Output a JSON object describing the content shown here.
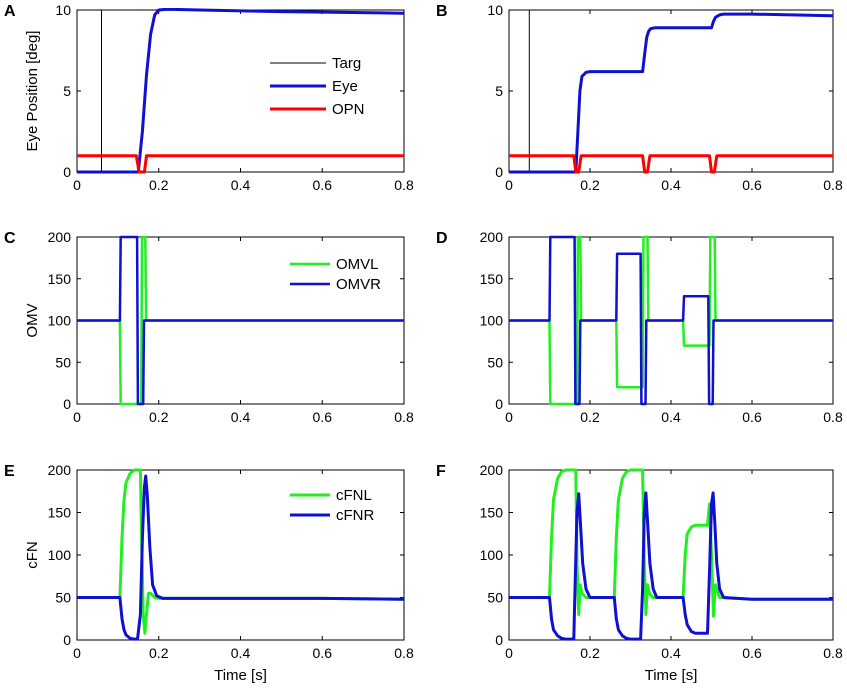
{
  "figure": {
    "title": "Saccade model simulation panels"
  },
  "chart_data": [
    {
      "id": "A",
      "type": "line",
      "panel_label": "A",
      "title": "",
      "xlabel": "",
      "ylabel": "Eye Position [deg]",
      "xlim": [
        0,
        0.8
      ],
      "ylim": [
        0,
        10
      ],
      "xticks": [
        0,
        0.2,
        0.4,
        0.6,
        0.8
      ],
      "xtick_labels": [
        "0",
        "0.2",
        "0.4",
        "0.6",
        "0.8"
      ],
      "yticks": [
        0,
        5,
        10
      ],
      "ytick_labels": [
        "0",
        "5",
        "10"
      ],
      "legend": {
        "position": "center",
        "entries": [
          "Targ",
          "Eye",
          "OPN"
        ]
      },
      "series": [
        {
          "name": "Targ",
          "color": "#000000",
          "width": 1,
          "x": [
            0,
            0.06,
            0.06,
            0.8
          ],
          "y": [
            0,
            0,
            10,
            10
          ]
        },
        {
          "name": "Eye",
          "color": "#1010d0",
          "width": 3,
          "x": [
            0,
            0.15,
            0.16,
            0.17,
            0.18,
            0.19,
            0.2,
            0.22,
            0.3,
            0.5,
            0.8
          ],
          "y": [
            0,
            0,
            2.5,
            6.0,
            8.5,
            9.7,
            10.0,
            10.05,
            10.0,
            9.9,
            9.8
          ]
        },
        {
          "name": "OPN",
          "color": "#ff0000",
          "width": 3,
          "x": [
            0,
            0.145,
            0.152,
            0.165,
            0.17,
            0.8
          ],
          "y": [
            1,
            1,
            0,
            0,
            1,
            1
          ]
        }
      ]
    },
    {
      "id": "B",
      "type": "line",
      "panel_label": "B",
      "title": "",
      "xlabel": "",
      "ylabel": "",
      "xlim": [
        0,
        0.8
      ],
      "ylim": [
        0,
        10
      ],
      "xticks": [
        0,
        0.2,
        0.4,
        0.6,
        0.8
      ],
      "xtick_labels": [
        "0",
        "0.2",
        "0.4",
        "0.6",
        "0.8"
      ],
      "yticks": [
        0,
        5,
        10
      ],
      "ytick_labels": [
        "0",
        "5",
        "10"
      ],
      "series": [
        {
          "name": "Targ",
          "color": "#000000",
          "width": 1,
          "x": [
            0,
            0.05,
            0.05,
            0.8
          ],
          "y": [
            0,
            0,
            10,
            10
          ]
        },
        {
          "name": "Eye",
          "color": "#1010d0",
          "width": 3,
          "x": [
            0,
            0.165,
            0.17,
            0.175,
            0.18,
            0.19,
            0.2,
            0.25,
            0.33,
            0.335,
            0.34,
            0.345,
            0.35,
            0.36,
            0.4,
            0.5,
            0.505,
            0.51,
            0.52,
            0.53,
            0.6,
            0.8
          ],
          "y": [
            0,
            0,
            2.5,
            5.0,
            5.9,
            6.15,
            6.2,
            6.2,
            6.2,
            7.3,
            8.3,
            8.7,
            8.85,
            8.9,
            8.9,
            8.9,
            9.3,
            9.55,
            9.7,
            9.75,
            9.75,
            9.65
          ]
        },
        {
          "name": "OPN",
          "color": "#ff0000",
          "width": 3,
          "x": [
            0,
            0.16,
            0.165,
            0.172,
            0.178,
            0.33,
            0.335,
            0.342,
            0.348,
            0.495,
            0.5,
            0.507,
            0.513,
            0.8
          ],
          "y": [
            1,
            1,
            0,
            0,
            1,
            1,
            0,
            0,
            1,
            1,
            0,
            0,
            1,
            1
          ]
        }
      ]
    },
    {
      "id": "C",
      "type": "line",
      "panel_label": "C",
      "title": "",
      "xlabel": "",
      "ylabel": "OMV",
      "xlim": [
        0,
        0.8
      ],
      "ylim": [
        0,
        200
      ],
      "xticks": [
        0,
        0.2,
        0.4,
        0.6,
        0.8
      ],
      "xtick_labels": [
        "0",
        "0.2",
        "0.4",
        "0.6",
        "0.8"
      ],
      "yticks": [
        0,
        50,
        100,
        150,
        200
      ],
      "ytick_labels": [
        "0",
        "50",
        "100",
        "150",
        "200"
      ],
      "legend": {
        "position": "center-right",
        "entries": [
          "OMVL",
          "OMVR"
        ]
      },
      "series": [
        {
          "name": "OMVL",
          "color": "#22ee22",
          "width": 2.5,
          "x": [
            0,
            0.105,
            0.107,
            0.157,
            0.159,
            0.167,
            0.169,
            0.8
          ],
          "y": [
            100,
            100,
            0,
            0,
            200,
            200,
            100,
            100
          ]
        },
        {
          "name": "OMVR",
          "color": "#1010d0",
          "width": 2.5,
          "x": [
            0,
            0.105,
            0.107,
            0.147,
            0.149,
            0.162,
            0.164,
            0.8
          ],
          "y": [
            100,
            100,
            200,
            200,
            0,
            0,
            100,
            100
          ]
        }
      ]
    },
    {
      "id": "D",
      "type": "line",
      "panel_label": "D",
      "title": "",
      "xlabel": "",
      "ylabel": "",
      "xlim": [
        0,
        0.8
      ],
      "ylim": [
        0,
        200
      ],
      "xticks": [
        0,
        0.2,
        0.4,
        0.6,
        0.8
      ],
      "xtick_labels": [
        "0",
        "0.2",
        "0.4",
        "0.6",
        "0.8"
      ],
      "yticks": [
        0,
        50,
        100,
        150,
        200
      ],
      "ytick_labels": [
        "0",
        "50",
        "100",
        "150",
        "200"
      ],
      "series": [
        {
          "name": "OMVL",
          "color": "#22ee22",
          "width": 2.5,
          "x": [
            0,
            0.1,
            0.102,
            0.168,
            0.17,
            0.176,
            0.178,
            0.265,
            0.267,
            0.33,
            0.332,
            0.342,
            0.344,
            0.43,
            0.432,
            0.495,
            0.497,
            0.508,
            0.51,
            0.8
          ],
          "y": [
            100,
            100,
            0,
            0,
            200,
            200,
            100,
            100,
            20,
            20,
            200,
            200,
            100,
            100,
            70,
            70,
            200,
            200,
            100,
            100
          ]
        },
        {
          "name": "OMVR",
          "color": "#1010d0",
          "width": 2.5,
          "x": [
            0,
            0.1,
            0.102,
            0.162,
            0.164,
            0.174,
            0.176,
            0.265,
            0.267,
            0.325,
            0.327,
            0.337,
            0.339,
            0.43,
            0.432,
            0.492,
            0.494,
            0.503,
            0.505,
            0.8
          ],
          "y": [
            100,
            100,
            200,
            200,
            0,
            0,
            100,
            100,
            180,
            180,
            0,
            0,
            100,
            100,
            129,
            129,
            0,
            0,
            100,
            100
          ]
        }
      ]
    },
    {
      "id": "E",
      "type": "line",
      "panel_label": "E",
      "title": "",
      "xlabel": "Time [s]",
      "ylabel": "cFN",
      "xlim": [
        0,
        0.8
      ],
      "ylim": [
        0,
        200
      ],
      "xticks": [
        0,
        0.2,
        0.4,
        0.6,
        0.8
      ],
      "xtick_labels": [
        "0",
        "0.2",
        "0.4",
        "0.6",
        "0.8"
      ],
      "yticks": [
        0,
        50,
        100,
        150,
        200
      ],
      "ytick_labels": [
        "0",
        "50",
        "100",
        "150",
        "200"
      ],
      "legend": {
        "position": "center-right",
        "entries": [
          "cFNL",
          "cFNR"
        ]
      },
      "series": [
        {
          "name": "cFNL",
          "color": "#22ee22",
          "width": 3,
          "x": [
            0,
            0.105,
            0.11,
            0.115,
            0.12,
            0.13,
            0.14,
            0.155,
            0.158,
            0.162,
            0.166,
            0.17,
            0.175,
            0.18,
            0.19,
            0.2,
            0.4,
            0.6,
            0.8
          ],
          "y": [
            50,
            50,
            120,
            165,
            185,
            196,
            200,
            200,
            120,
            30,
            8,
            30,
            55,
            55,
            50,
            49,
            49,
            49,
            48
          ]
        },
        {
          "name": "cFNR",
          "color": "#1010d0",
          "width": 3,
          "x": [
            0,
            0.105,
            0.11,
            0.115,
            0.12,
            0.13,
            0.14,
            0.148,
            0.155,
            0.16,
            0.165,
            0.168,
            0.172,
            0.178,
            0.185,
            0.195,
            0.21,
            0.4,
            0.6,
            0.8
          ],
          "y": [
            50,
            50,
            25,
            12,
            6,
            2,
            1,
            1,
            30,
            120,
            180,
            193,
            170,
            110,
            65,
            52,
            49,
            49,
            49,
            48
          ]
        }
      ]
    },
    {
      "id": "F",
      "type": "line",
      "panel_label": "F",
      "title": "",
      "xlabel": "Time [s]",
      "ylabel": "",
      "xlim": [
        0,
        0.8
      ],
      "ylim": [
        0,
        200
      ],
      "xticks": [
        0,
        0.2,
        0.4,
        0.6,
        0.8
      ],
      "xtick_labels": [
        "0",
        "0.2",
        "0.4",
        "0.6",
        "0.8"
      ],
      "yticks": [
        0,
        50,
        100,
        150,
        200
      ],
      "ytick_labels": [
        "0",
        "50",
        "100",
        "150",
        "200"
      ],
      "series": [
        {
          "name": "cFNL",
          "color": "#22ee22",
          "width": 3,
          "x": [
            0,
            0.1,
            0.105,
            0.11,
            0.12,
            0.13,
            0.14,
            0.165,
            0.168,
            0.172,
            0.176,
            0.18,
            0.19,
            0.26,
            0.265,
            0.27,
            0.28,
            0.29,
            0.3,
            0.33,
            0.334,
            0.338,
            0.342,
            0.347,
            0.355,
            0.43,
            0.435,
            0.44,
            0.45,
            0.46,
            0.49,
            0.495,
            0.5,
            0.505,
            0.51,
            0.52,
            0.6,
            0.8
          ],
          "y": [
            50,
            50,
            120,
            165,
            190,
            198,
            200,
            200,
            90,
            30,
            65,
            55,
            50,
            50,
            120,
            165,
            190,
            198,
            200,
            200,
            90,
            30,
            65,
            55,
            50,
            50,
            100,
            125,
            133,
            135,
            135,
            160,
            100,
            28,
            65,
            50,
            48,
            48
          ]
        },
        {
          "name": "cFNR",
          "color": "#1010d0",
          "width": 3,
          "x": [
            0,
            0.1,
            0.105,
            0.11,
            0.12,
            0.13,
            0.14,
            0.16,
            0.163,
            0.168,
            0.172,
            0.176,
            0.182,
            0.19,
            0.2,
            0.26,
            0.265,
            0.27,
            0.28,
            0.29,
            0.3,
            0.325,
            0.33,
            0.334,
            0.338,
            0.342,
            0.348,
            0.356,
            0.365,
            0.43,
            0.435,
            0.44,
            0.45,
            0.46,
            0.49,
            0.495,
            0.5,
            0.504,
            0.508,
            0.513,
            0.52,
            0.53,
            0.6,
            0.8
          ],
          "y": [
            50,
            50,
            25,
            12,
            5,
            2,
            1,
            1,
            60,
            150,
            172,
            140,
            90,
            60,
            50,
            50,
            25,
            12,
            5,
            2,
            1,
            1,
            60,
            150,
            173,
            140,
            90,
            60,
            50,
            50,
            30,
            18,
            10,
            8,
            8,
            80,
            160,
            173,
            140,
            90,
            60,
            50,
            48,
            48
          ]
        }
      ]
    }
  ]
}
